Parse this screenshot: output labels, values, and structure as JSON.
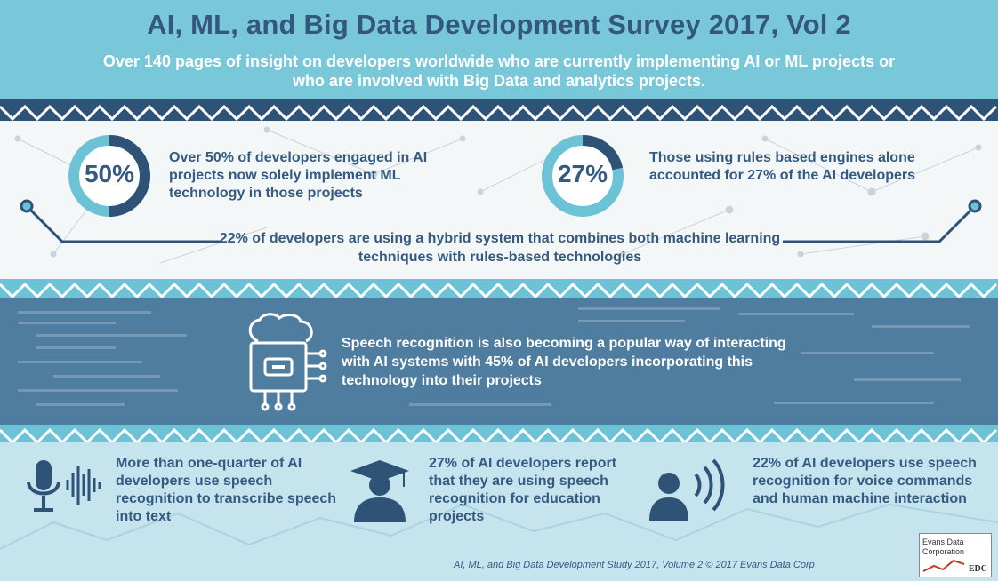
{
  "header": {
    "title": "AI, ML, and Big Data Development Survey 2017, Vol 2",
    "subtitle": "Over 140 pages of insight on developers worldwide who are currently implementing AI or ML projects or who are involved with Big Data and analytics projects."
  },
  "stats": {
    "left": {
      "percent_label": "50%",
      "percent": 50,
      "text": "Over 50% of developers engaged in AI projects now solely implement ML technology in those projects"
    },
    "right": {
      "percent_label": "27%",
      "percent": 27,
      "text": "Those using rules based engines alone accounted for 27% of the AI developers"
    },
    "hybrid": "22% of developers are using a hybrid system that combines both machine learning techniques with rules-based technologies"
  },
  "speech": {
    "text": "Speech recognition is also becoming a popular way of interacting with AI systems with 45% of AI developers incorporating this technology into their projects",
    "icon": "brain-chip-icon"
  },
  "bottom": {
    "items": [
      {
        "icon": "microphone-icon",
        "text": "More than one-quarter of AI developers use speech recognition to transcribe speech into text"
      },
      {
        "icon": "graduate-icon",
        "text": "27% of AI developers report that they are using speech recognition for education projects"
      },
      {
        "icon": "person-speaking-icon",
        "text": "22% of AI developers use speech recognition for voice commands and human machine interaction"
      }
    ]
  },
  "footer": {
    "citation": "AI, ML, and Big Data Development Study 2017, Volume 2 © 2017 Evans Data Corp",
    "logo_line1": "Evans Data",
    "logo_line2": "Corporation",
    "logo_mark": "EDC"
  },
  "colors": {
    "navy": "#355a82",
    "teal": "#78c8d9",
    "light": "#c6e4ee"
  }
}
